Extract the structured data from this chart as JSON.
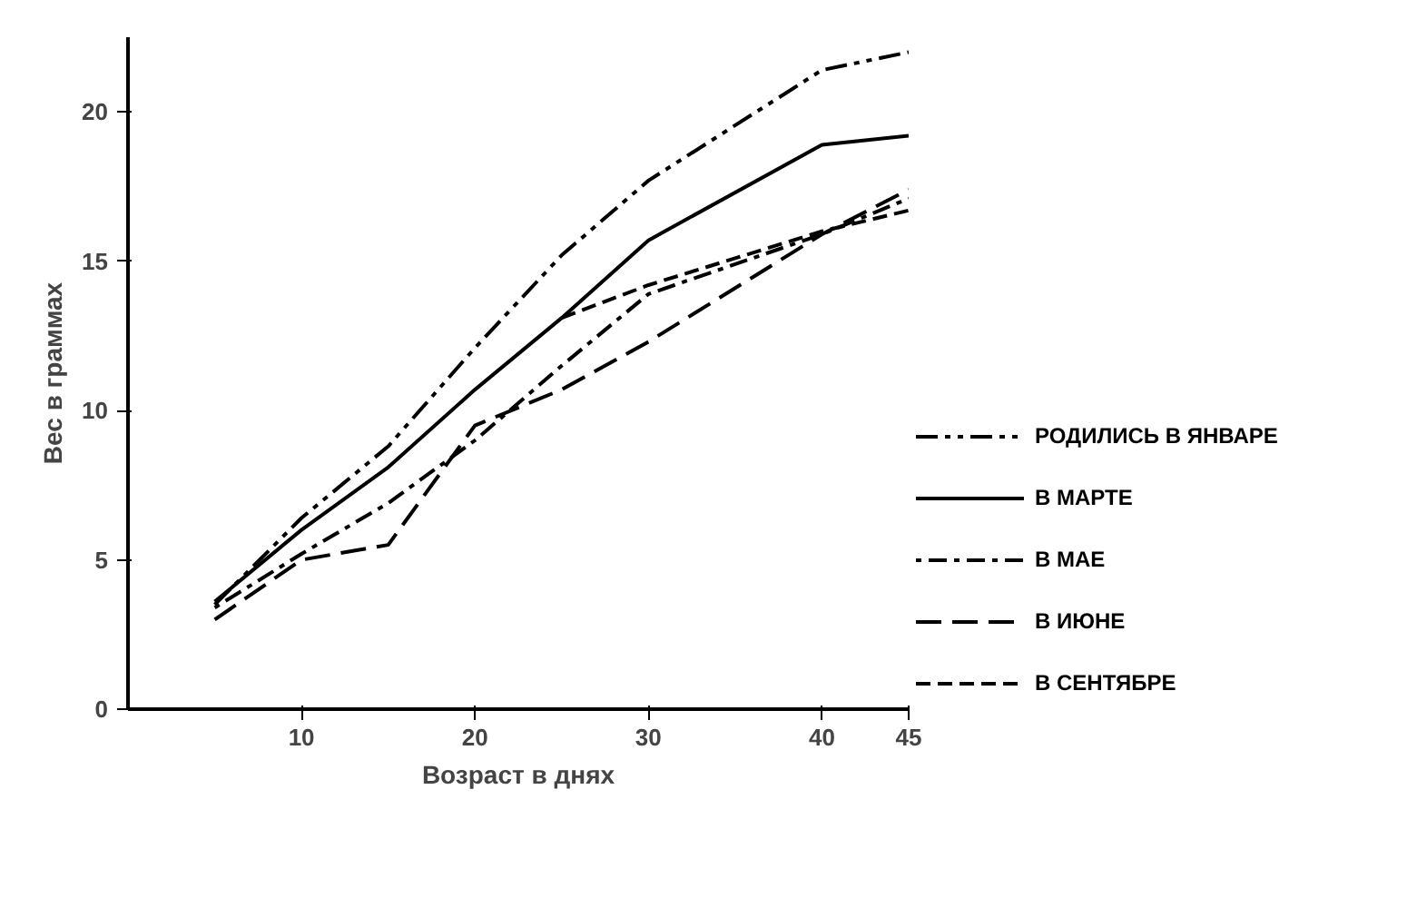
{
  "chart_data": {
    "type": "line",
    "xlabel": "Возраст в днях",
    "ylabel": "Вес в граммах",
    "x": [
      5,
      10,
      15,
      20,
      25,
      30,
      40,
      45
    ],
    "series": [
      {
        "name": "РОДИЛИСЬ В ЯНВАРЕ",
        "color": "#000000",
        "line_style": "dashdotdot",
        "values": [
          3.5,
          6.4,
          8.8,
          12.1,
          15.2,
          17.7,
          21.4,
          22.0
        ]
      },
      {
        "name": "В МАРТЕ",
        "color": "#000000",
        "line_style": "solid",
        "values": [
          3.6,
          6.0,
          8.1,
          10.7,
          13.1,
          15.7,
          18.9,
          19.2
        ]
      },
      {
        "name": "В МАЕ",
        "color": "#000000",
        "line_style": "dashdot",
        "values": [
          3.4,
          5.2,
          6.9,
          9.0,
          11.5,
          13.9,
          15.9,
          17.1
        ]
      },
      {
        "name": "В ИЮНЕ",
        "color": "#000000",
        "line_style": "longdash",
        "values": [
          3.0,
          5.0,
          5.5,
          9.5,
          10.7,
          12.3,
          15.9,
          17.4
        ]
      },
      {
        "name": "В СЕНТЯБРЕ",
        "color": "#000000",
        "line_style": "dashed",
        "x": [
          25,
          30,
          40,
          45
        ],
        "values": [
          13.1,
          14.2,
          16.0,
          16.7
        ]
      }
    ],
    "xlim": [
      0,
      45
    ],
    "ylim": [
      0,
      22.5
    ],
    "xticks": [
      10,
      20,
      30,
      40,
      45
    ],
    "yticks": [
      0,
      5,
      10,
      15,
      20
    ],
    "grid": false,
    "legend": "right",
    "marker": "none"
  }
}
